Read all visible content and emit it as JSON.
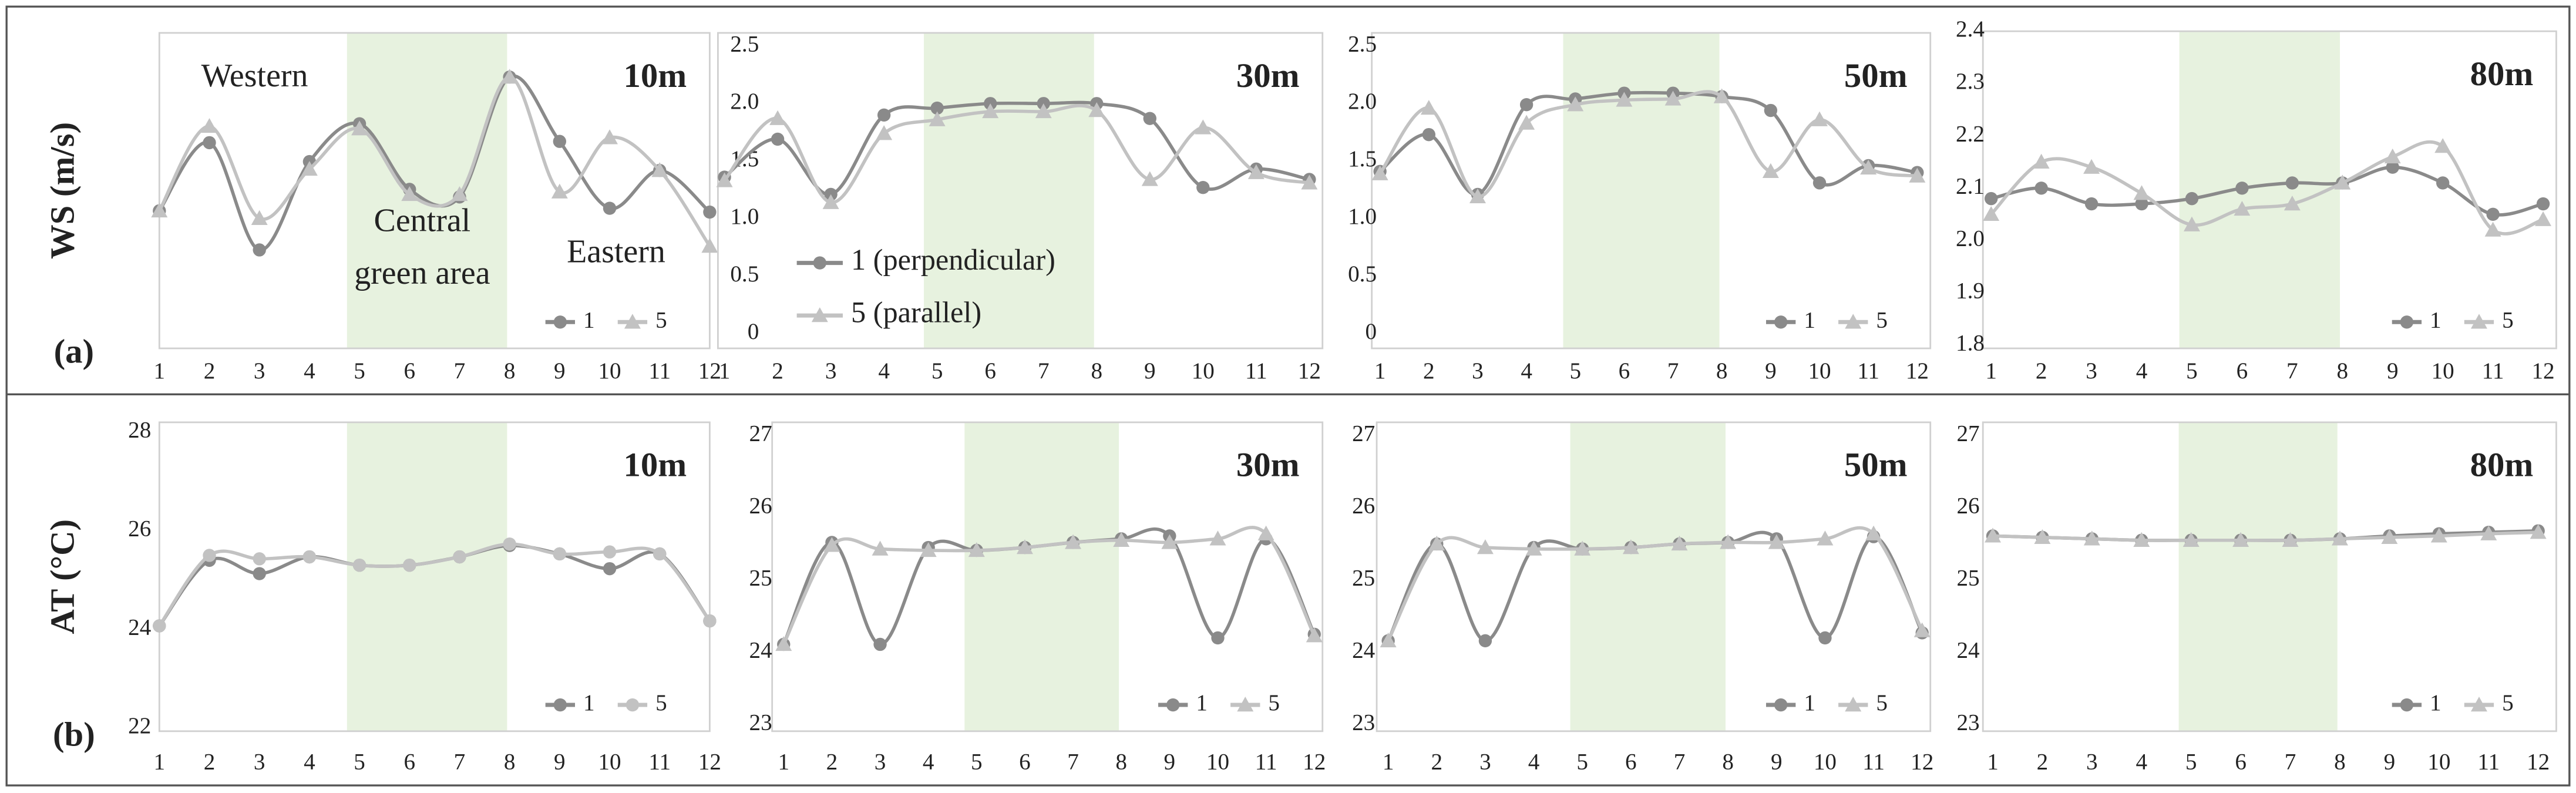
{
  "chart_data": [
    {
      "type": "line",
      "title": "10m",
      "ylabel": "WS (m/s)",
      "panel_label": "(a)",
      "x": [
        1,
        2,
        3,
        4,
        5,
        6,
        7,
        8,
        9,
        10,
        11,
        12
      ],
      "xlim": [
        1,
        12
      ],
      "xticks": [
        1,
        2,
        3,
        4,
        5,
        6,
        7,
        8,
        9,
        10,
        11,
        12
      ],
      "ylim": [
        0,
        2.5
      ],
      "legend": "lower right",
      "shade": {
        "x": [
          4.75,
          7.95
        ],
        "color": "#e7f2df"
      },
      "annotations": [
        {
          "text": "Western"
        },
        {
          "text": "Central"
        },
        {
          "text": "green area"
        },
        {
          "text": "Eastern"
        }
      ],
      "series": [
        {
          "name": "1",
          "color": "#8a8a8a",
          "marker": "circle",
          "values": [
            1.09,
            1.63,
            0.78,
            1.48,
            1.78,
            1.26,
            1.2,
            2.15,
            1.64,
            1.11,
            1.41,
            1.08
          ]
        },
        {
          "name": "5",
          "color": "#c2c2c2",
          "marker": "triangle",
          "values": [
            1.09,
            1.76,
            1.03,
            1.42,
            1.74,
            1.22,
            1.22,
            2.15,
            1.24,
            1.67,
            1.41,
            0.81
          ]
        }
      ]
    },
    {
      "type": "line",
      "title": "30m",
      "x": [
        1,
        2,
        3,
        4,
        5,
        6,
        7,
        8,
        9,
        10,
        11,
        12
      ],
      "xlim": [
        1,
        12
      ],
      "xticks": [
        1,
        2,
        3,
        4,
        5,
        6,
        7,
        8,
        9,
        10,
        11,
        12
      ],
      "ylim": [
        0,
        2.5
      ],
      "yticks": [
        0,
        0.5,
        {
          "value": 1,
          "label": "1.0"
        },
        1.5,
        {
          "value": 2,
          "label": "2.0"
        },
        2.5
      ],
      "legend": "lower left",
      "shade": {
        "x": [
          4.75,
          7.95
        ],
        "color": "#e7f2df"
      },
      "series": [
        {
          "name": "1 (perpendicular)",
          "color": "#8a8a8a",
          "marker": "circle",
          "values": [
            1.36,
            1.69,
            1.21,
            1.9,
            1.96,
            2.0,
            2.0,
            2.0,
            1.87,
            1.27,
            1.43,
            1.34
          ]
        },
        {
          "name": "5 (parallel)",
          "color": "#c2c2c2",
          "marker": "triangle",
          "values": [
            1.33,
            1.87,
            1.14,
            1.74,
            1.86,
            1.93,
            1.93,
            1.94,
            1.34,
            1.79,
            1.4,
            1.31
          ]
        }
      ]
    },
    {
      "type": "line",
      "title": "50m",
      "x": [
        1,
        2,
        3,
        4,
        5,
        6,
        7,
        8,
        9,
        10,
        11,
        12
      ],
      "xlim": [
        1,
        12
      ],
      "xticks": [
        1,
        2,
        3,
        4,
        5,
        6,
        7,
        8,
        9,
        10,
        11,
        12
      ],
      "ylim": [
        0,
        2.5
      ],
      "yticks": [
        0,
        0.5,
        {
          "value": 1,
          "label": "1.0"
        },
        1.5,
        {
          "value": 2,
          "label": "2.0"
        },
        2.5
      ],
      "legend": "lower right",
      "shade": {
        "x": [
          4.75,
          7.95
        ],
        "color": "#e7f2df"
      },
      "series": [
        {
          "name": "1",
          "color": "#8a8a8a",
          "marker": "circle",
          "values": [
            1.41,
            1.73,
            1.21,
            1.99,
            2.04,
            2.09,
            2.09,
            2.06,
            1.94,
            1.31,
            1.46,
            1.4
          ]
        },
        {
          "name": "5",
          "color": "#c2c2c2",
          "marker": "triangle",
          "values": [
            1.39,
            1.96,
            1.19,
            1.83,
            1.99,
            2.03,
            2.04,
            2.06,
            1.41,
            1.86,
            1.44,
            1.37
          ]
        }
      ]
    },
    {
      "type": "line",
      "title": "80m",
      "x": [
        1,
        2,
        3,
        4,
        5,
        6,
        7,
        8,
        9,
        10,
        11,
        12
      ],
      "xlim": [
        1,
        12
      ],
      "xticks": [
        1,
        2,
        3,
        4,
        5,
        6,
        7,
        8,
        9,
        10,
        11,
        12
      ],
      "ylim": [
        1.8,
        2.4
      ],
      "yticks": [
        1.8,
        1.9,
        {
          "value": 2,
          "label": "2.0"
        },
        2.1,
        2.2,
        2.3,
        2.4
      ],
      "legend": "lower right",
      "shade": {
        "x": [
          4.75,
          7.95
        ],
        "color": "#e7f2df"
      },
      "series": [
        {
          "name": "1",
          "color": "#8a8a8a",
          "marker": "circle",
          "values": [
            2.08,
            2.1,
            2.07,
            2.07,
            2.08,
            2.1,
            2.11,
            2.11,
            2.14,
            2.11,
            2.05,
            2.07
          ]
        },
        {
          "name": "5",
          "color": "#c2c2c2",
          "marker": "triangle",
          "values": [
            2.05,
            2.15,
            2.14,
            2.09,
            2.03,
            2.06,
            2.07,
            2.11,
            2.16,
            2.18,
            2.02,
            2.04
          ]
        }
      ]
    },
    {
      "type": "line",
      "title": "10m",
      "ylabel": "AT (°C)",
      "panel_label": "(b)",
      "x": [
        1,
        2,
        3,
        4,
        5,
        6,
        7,
        8,
        9,
        10,
        11,
        12
      ],
      "xlim": [
        1,
        12
      ],
      "xticks": [
        1,
        2,
        3,
        4,
        5,
        6,
        7,
        8,
        9,
        10,
        11,
        12
      ],
      "ylim": [
        22,
        28
      ],
      "yticks": [
        22,
        24,
        26,
        28
      ],
      "legend": "lower right",
      "shade": {
        "x": [
          4.75,
          7.95
        ],
        "color": "#e7f2df"
      },
      "series": [
        {
          "name": "1",
          "color": "#8a8a8a",
          "marker": "circle",
          "values": [
            24.07,
            25.4,
            25.13,
            25.47,
            25.3,
            25.3,
            25.47,
            25.7,
            25.53,
            25.23,
            25.53,
            24.17
          ]
        },
        {
          "name": "5",
          "color": "#c2c2c2",
          "marker": "circle",
          "values": [
            24.07,
            25.5,
            25.43,
            25.47,
            25.3,
            25.3,
            25.47,
            25.73,
            25.53,
            25.57,
            25.53,
            24.17
          ]
        }
      ]
    },
    {
      "type": "line",
      "title": "30m",
      "x": [
        1,
        2,
        3,
        4,
        5,
        6,
        7,
        8,
        9,
        10,
        11,
        12
      ],
      "xlim": [
        1,
        12
      ],
      "xticks": [
        1,
        2,
        3,
        4,
        5,
        6,
        7,
        8,
        9,
        10,
        11,
        12
      ],
      "ylim": [
        23,
        27
      ],
      "yticks": [
        23,
        24,
        25,
        26,
        27
      ],
      "legend": "lower right",
      "shade": {
        "x": [
          4.75,
          7.95
        ],
        "color": "#e7f2df"
      },
      "series": [
        {
          "name": "1",
          "color": "#8a8a8a",
          "marker": "circle",
          "values": [
            24.11,
            25.52,
            24.11,
            25.45,
            25.41,
            25.45,
            25.52,
            25.57,
            25.61,
            24.2,
            25.57,
            24.25
          ]
        },
        {
          "name": "5",
          "color": "#c2c2c2",
          "marker": "triangle",
          "values": [
            24.11,
            25.48,
            25.43,
            25.41,
            25.41,
            25.45,
            25.52,
            25.55,
            25.52,
            25.57,
            25.64,
            24.23
          ]
        }
      ]
    },
    {
      "type": "line",
      "title": "50m",
      "x": [
        1,
        2,
        3,
        4,
        5,
        6,
        7,
        8,
        9,
        10,
        11,
        12
      ],
      "xlim": [
        1,
        12
      ],
      "xticks": [
        1,
        2,
        3,
        4,
        5,
        6,
        7,
        8,
        9,
        10,
        11,
        12
      ],
      "ylim": [
        23,
        27
      ],
      "yticks": [
        23,
        24,
        25,
        26,
        27
      ],
      "legend": "lower right",
      "shade": {
        "x": [
          4.75,
          7.95
        ],
        "color": "#e7f2df"
      },
      "series": [
        {
          "name": "1",
          "color": "#8a8a8a",
          "marker": "circle",
          "values": [
            24.16,
            25.5,
            24.16,
            25.45,
            25.43,
            25.45,
            25.5,
            25.52,
            25.57,
            24.2,
            25.6,
            24.27
          ]
        },
        {
          "name": "5",
          "color": "#c2c2c2",
          "marker": "triangle",
          "values": [
            24.16,
            25.5,
            25.45,
            25.43,
            25.43,
            25.45,
            25.5,
            25.52,
            25.52,
            25.57,
            25.64,
            24.3
          ]
        }
      ]
    },
    {
      "type": "line",
      "title": "80m",
      "x": [
        1,
        2,
        3,
        4,
        5,
        6,
        7,
        8,
        9,
        10,
        11,
        12
      ],
      "xlim": [
        1,
        12
      ],
      "xticks": [
        1,
        2,
        3,
        4,
        5,
        6,
        7,
        8,
        9,
        10,
        11,
        12
      ],
      "ylim": [
        23,
        27
      ],
      "yticks": [
        23,
        24,
        25,
        26,
        27
      ],
      "legend": "lower right",
      "shade": {
        "x": [
          4.75,
          7.95
        ],
        "color": "#e7f2df"
      },
      "series": [
        {
          "name": "1",
          "color": "#8a8a8a",
          "marker": "circle",
          "values": [
            25.61,
            25.59,
            25.57,
            25.55,
            25.55,
            25.55,
            25.55,
            25.57,
            25.61,
            25.64,
            25.66,
            25.68
          ]
        },
        {
          "name": "5",
          "color": "#c2c2c2",
          "marker": "triangle",
          "values": [
            25.61,
            25.59,
            25.57,
            25.55,
            25.55,
            25.55,
            25.55,
            25.57,
            25.59,
            25.61,
            25.64,
            25.66
          ]
        }
      ]
    }
  ]
}
